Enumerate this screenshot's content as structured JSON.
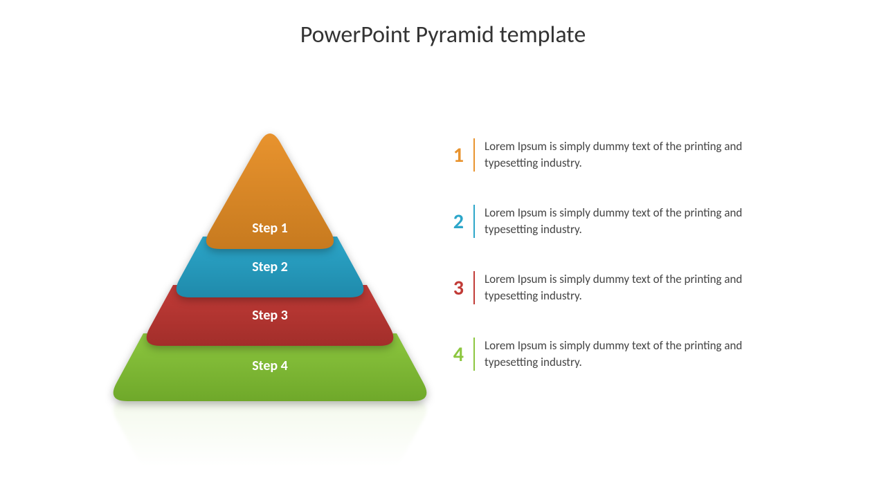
{
  "title": {
    "text": "PowerPoint Pyramid template",
    "fontsize": 34,
    "color": "#333333"
  },
  "pyramid": {
    "type": "pyramid",
    "apex_radius": 30,
    "base_radius": 30,
    "label_fontsize": 20,
    "label_color": "#ffffff",
    "shadow_color": "rgba(0,0,0,0.3)",
    "background_color": "#ffffff",
    "reflection_opacity": 0.15,
    "slices": [
      {
        "label": "Step 1",
        "color": "#e8932e",
        "color_dark": "#c77a1f"
      },
      {
        "label": "Step 2",
        "color": "#2ca6c9",
        "color_dark": "#1f8aab"
      },
      {
        "label": "Step 3",
        "color": "#c13b37",
        "color_dark": "#a22e2a"
      },
      {
        "label": "Step 4",
        "color": "#8cc63f",
        "color_dark": "#6fa82a"
      }
    ],
    "geometry": {
      "total_height": 420,
      "slice_heights": [
        180,
        70,
        70,
        80
      ],
      "slice_widths": [
        204,
        290,
        376,
        472
      ],
      "label_y_offsets": [
        138,
        32,
        32,
        35
      ]
    }
  },
  "list": {
    "number_fontsize": 30,
    "text_fontsize": 17,
    "text_color": "#444444",
    "divider_width": 2,
    "gap": 48,
    "items": [
      {
        "number": "1",
        "color": "#e8932e",
        "text": "Lorem Ipsum is simply dummy text of the printing and typesetting industry."
      },
      {
        "number": "2",
        "color": "#2ca6c9",
        "text": "Lorem Ipsum is simply dummy text of the printing and typesetting industry."
      },
      {
        "number": "3",
        "color": "#c13b37",
        "text": "Lorem Ipsum is simply dummy text of the printing and typesetting industry."
      },
      {
        "number": "4",
        "color": "#8cc63f",
        "text": "Lorem Ipsum is simply dummy text of the printing and typesetting industry."
      }
    ]
  }
}
